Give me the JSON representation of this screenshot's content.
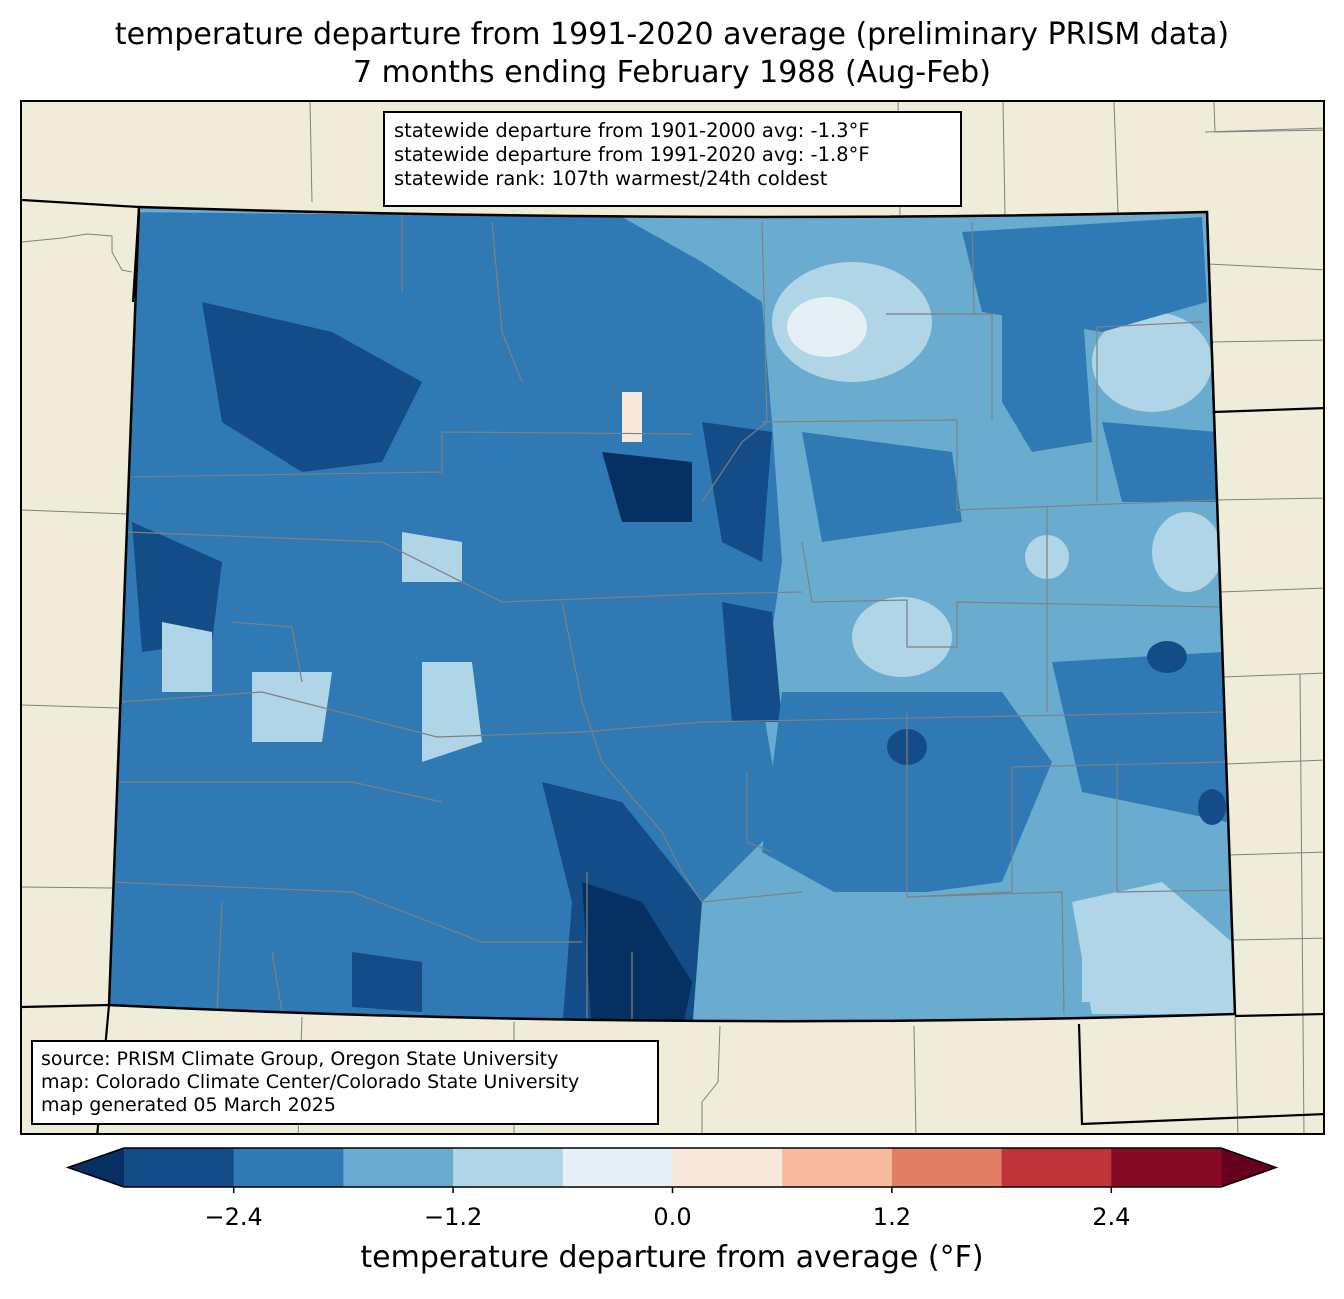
{
  "title_line1": "temperature departure from 1991-2020 average (preliminary PRISM data)",
  "title_line2": "7 months ending February 1988 (Aug-Feb)",
  "stats": {
    "line1": "statewide departure from 1901-2000 avg: -1.3°F",
    "line2": "statewide departure from 1991-2020 avg: -1.8°F",
    "line3": "statewide rank: 107th warmest/24th coldest"
  },
  "source": {
    "line1": "source: PRISM Climate Group, Oregon State University",
    "line2": "map: Colorado Climate Center/Colorado State University",
    "line3": "map generated 05 March 2025"
  },
  "colorbar": {
    "label": "temperature departure from average (°F)",
    "ticks": [
      "−2.4",
      "−1.2",
      "0.0",
      "1.2",
      "2.4"
    ],
    "tick_values": [
      -2.4,
      -1.2,
      0.0,
      1.2,
      2.4
    ],
    "range": [
      -3.0,
      3.0
    ],
    "bin_width": 0.6,
    "colors": [
      "#053061",
      "#134c87",
      "#2f79b5",
      "#6aacd0",
      "#b0d5e7",
      "#e5eff4",
      "#fae7dc",
      "#f8bba0",
      "#e27e63",
      "#bf3339",
      "#870a24",
      "#67001f"
    ]
  },
  "map_colors": {
    "background": "#efedd9",
    "state_border": "#000000",
    "county_lines": "#808080"
  }
}
